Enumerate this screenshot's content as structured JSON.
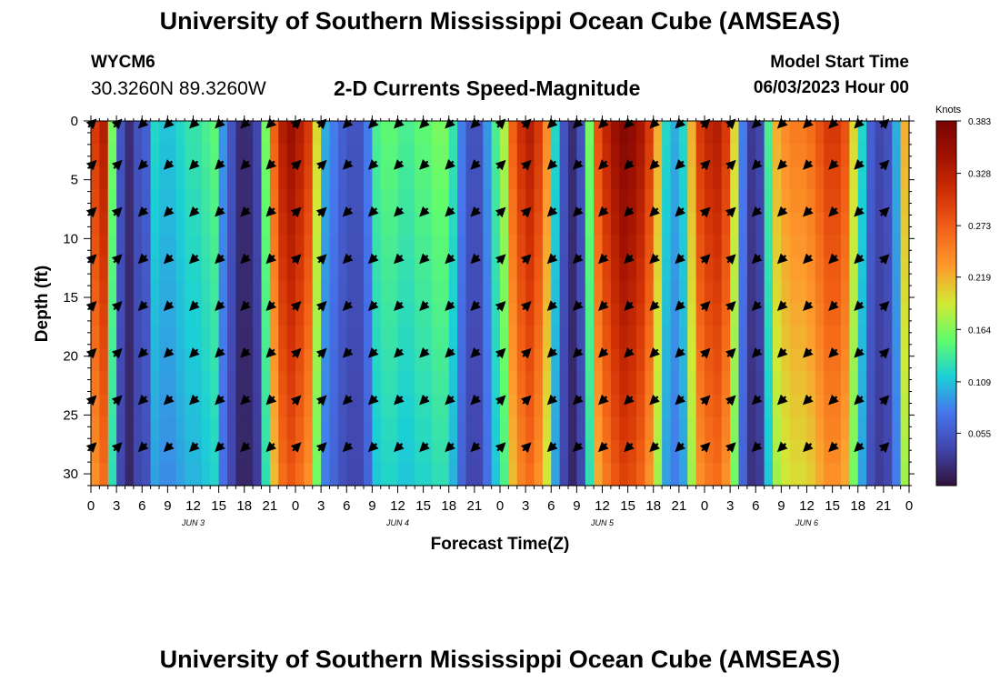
{
  "header": {
    "title": "University of Southern Mississippi Ocean Cube (AMSEAS)",
    "station_id": "WYCM6",
    "coords": "30.3260N  89.3260W",
    "subtitle": "2-D Currents Speed-Magnitude",
    "start_label": "Model Start Time",
    "start_value": "06/03/2023 Hour 00"
  },
  "footer": {
    "title": "University of Southern Mississippi Ocean Cube (AMSEAS)"
  },
  "chart_data": {
    "type": "heatmap",
    "title": "2-D Currents Speed-Magnitude",
    "xlabel": "Forecast Time(Z)",
    "ylabel": "Depth (ft)",
    "xlim": [
      0,
      96
    ],
    "ylim": [
      31,
      0
    ],
    "x_ticks": [
      0,
      3,
      6,
      9,
      12,
      15,
      18,
      21,
      24,
      27,
      30,
      33,
      36,
      39,
      42,
      45,
      48,
      51,
      54,
      57,
      60,
      63,
      66,
      69,
      72,
      75,
      78,
      81,
      84,
      87,
      90,
      93,
      96
    ],
    "x_tick_labels": [
      "0",
      "3",
      "6",
      "9",
      "12",
      "15",
      "18",
      "21",
      "0",
      "3",
      "6",
      "9",
      "12",
      "15",
      "18",
      "21",
      "0",
      "3",
      "6",
      "9",
      "12",
      "15",
      "18",
      "21",
      "0",
      "3",
      "6",
      "9",
      "12",
      "15",
      "18",
      "21",
      "0"
    ],
    "day_labels": [
      {
        "text": "JUN 3",
        "hour": 12
      },
      {
        "text": "JUN 4",
        "hour": 36
      },
      {
        "text": "JUN 5",
        "hour": 60
      },
      {
        "text": "JUN 6",
        "hour": 84
      }
    ],
    "y_ticks": [
      0,
      5,
      10,
      15,
      20,
      25,
      30
    ],
    "y_tick_labels": [
      "0",
      "5",
      "10",
      "15",
      "20",
      "25",
      "30"
    ],
    "colorbar": {
      "unit": "Knots",
      "min": 0.0,
      "max": 0.383,
      "ticks": [
        0.055,
        0.109,
        0.164,
        0.219,
        0.273,
        0.328,
        0.383
      ],
      "tick_labels": [
        "0.055",
        "0.109",
        "0.164",
        "0.219",
        "0.273",
        "0.328",
        "0.383"
      ]
    },
    "hours": [
      0,
      1,
      2,
      3,
      4,
      5,
      6,
      7,
      8,
      9,
      10,
      11,
      12,
      13,
      14,
      15,
      16,
      17,
      18,
      19,
      20,
      21,
      22,
      23,
      24,
      25,
      26,
      27,
      28,
      29,
      30,
      31,
      32,
      33,
      34,
      35,
      36,
      37,
      38,
      39,
      40,
      41,
      42,
      43,
      44,
      45,
      46,
      47,
      48,
      49,
      50,
      51,
      52,
      53,
      54,
      55,
      56,
      57,
      58,
      59,
      60,
      61,
      62,
      63,
      64,
      65,
      66,
      67,
      68,
      69,
      70,
      71,
      72,
      73,
      74,
      75,
      76,
      77,
      78,
      79,
      80,
      81,
      82,
      83,
      84,
      85,
      86,
      87,
      88,
      89,
      90,
      91,
      92,
      93,
      94,
      95
    ],
    "speed_profile": [
      0.3,
      0.33,
      0.16,
      0.05,
      0.02,
      0.05,
      0.06,
      0.12,
      0.11,
      0.11,
      0.12,
      0.13,
      0.13,
      0.14,
      0.15,
      0.09,
      0.05,
      0.02,
      0.02,
      0.04,
      0.16,
      0.27,
      0.33,
      0.35,
      0.33,
      0.3,
      0.2,
      0.1,
      0.08,
      0.06,
      0.05,
      0.05,
      0.08,
      0.14,
      0.15,
      0.15,
      0.14,
      0.14,
      0.15,
      0.15,
      0.16,
      0.16,
      0.13,
      0.08,
      0.05,
      0.05,
      0.09,
      0.14,
      0.18,
      0.27,
      0.31,
      0.33,
      0.3,
      0.24,
      0.12,
      0.05,
      0.02,
      0.05,
      0.16,
      0.28,
      0.32,
      0.35,
      0.37,
      0.36,
      0.34,
      0.3,
      0.22,
      0.12,
      0.1,
      0.12,
      0.22,
      0.3,
      0.32,
      0.33,
      0.3,
      0.2,
      0.08,
      0.03,
      0.04,
      0.14,
      0.22,
      0.24,
      0.25,
      0.25,
      0.26,
      0.28,
      0.3,
      0.3,
      0.28,
      0.2,
      0.12,
      0.06,
      0.04,
      0.05,
      0.1,
      0.22
    ],
    "arrow_depths_ft": [
      0,
      3.5,
      7.5,
      11.5,
      15.5,
      19.5,
      23.5,
      27.5
    ],
    "arrow_hours": [
      0,
      3,
      6,
      9,
      12,
      15,
      18,
      21,
      24,
      27,
      30,
      33,
      36,
      39,
      42,
      45,
      48,
      51,
      54,
      57,
      60,
      63,
      66,
      69,
      72,
      75,
      78,
      81,
      84,
      87,
      90,
      93
    ],
    "arrow_dir_deg": [
      45,
      45,
      225,
      225,
      225,
      225,
      225,
      225,
      45,
      45,
      225,
      225,
      225,
      225,
      225,
      225,
      45,
      45,
      225,
      225,
      225,
      225,
      225,
      225,
      45,
      45,
      225,
      225,
      225,
      225,
      225,
      45
    ]
  }
}
